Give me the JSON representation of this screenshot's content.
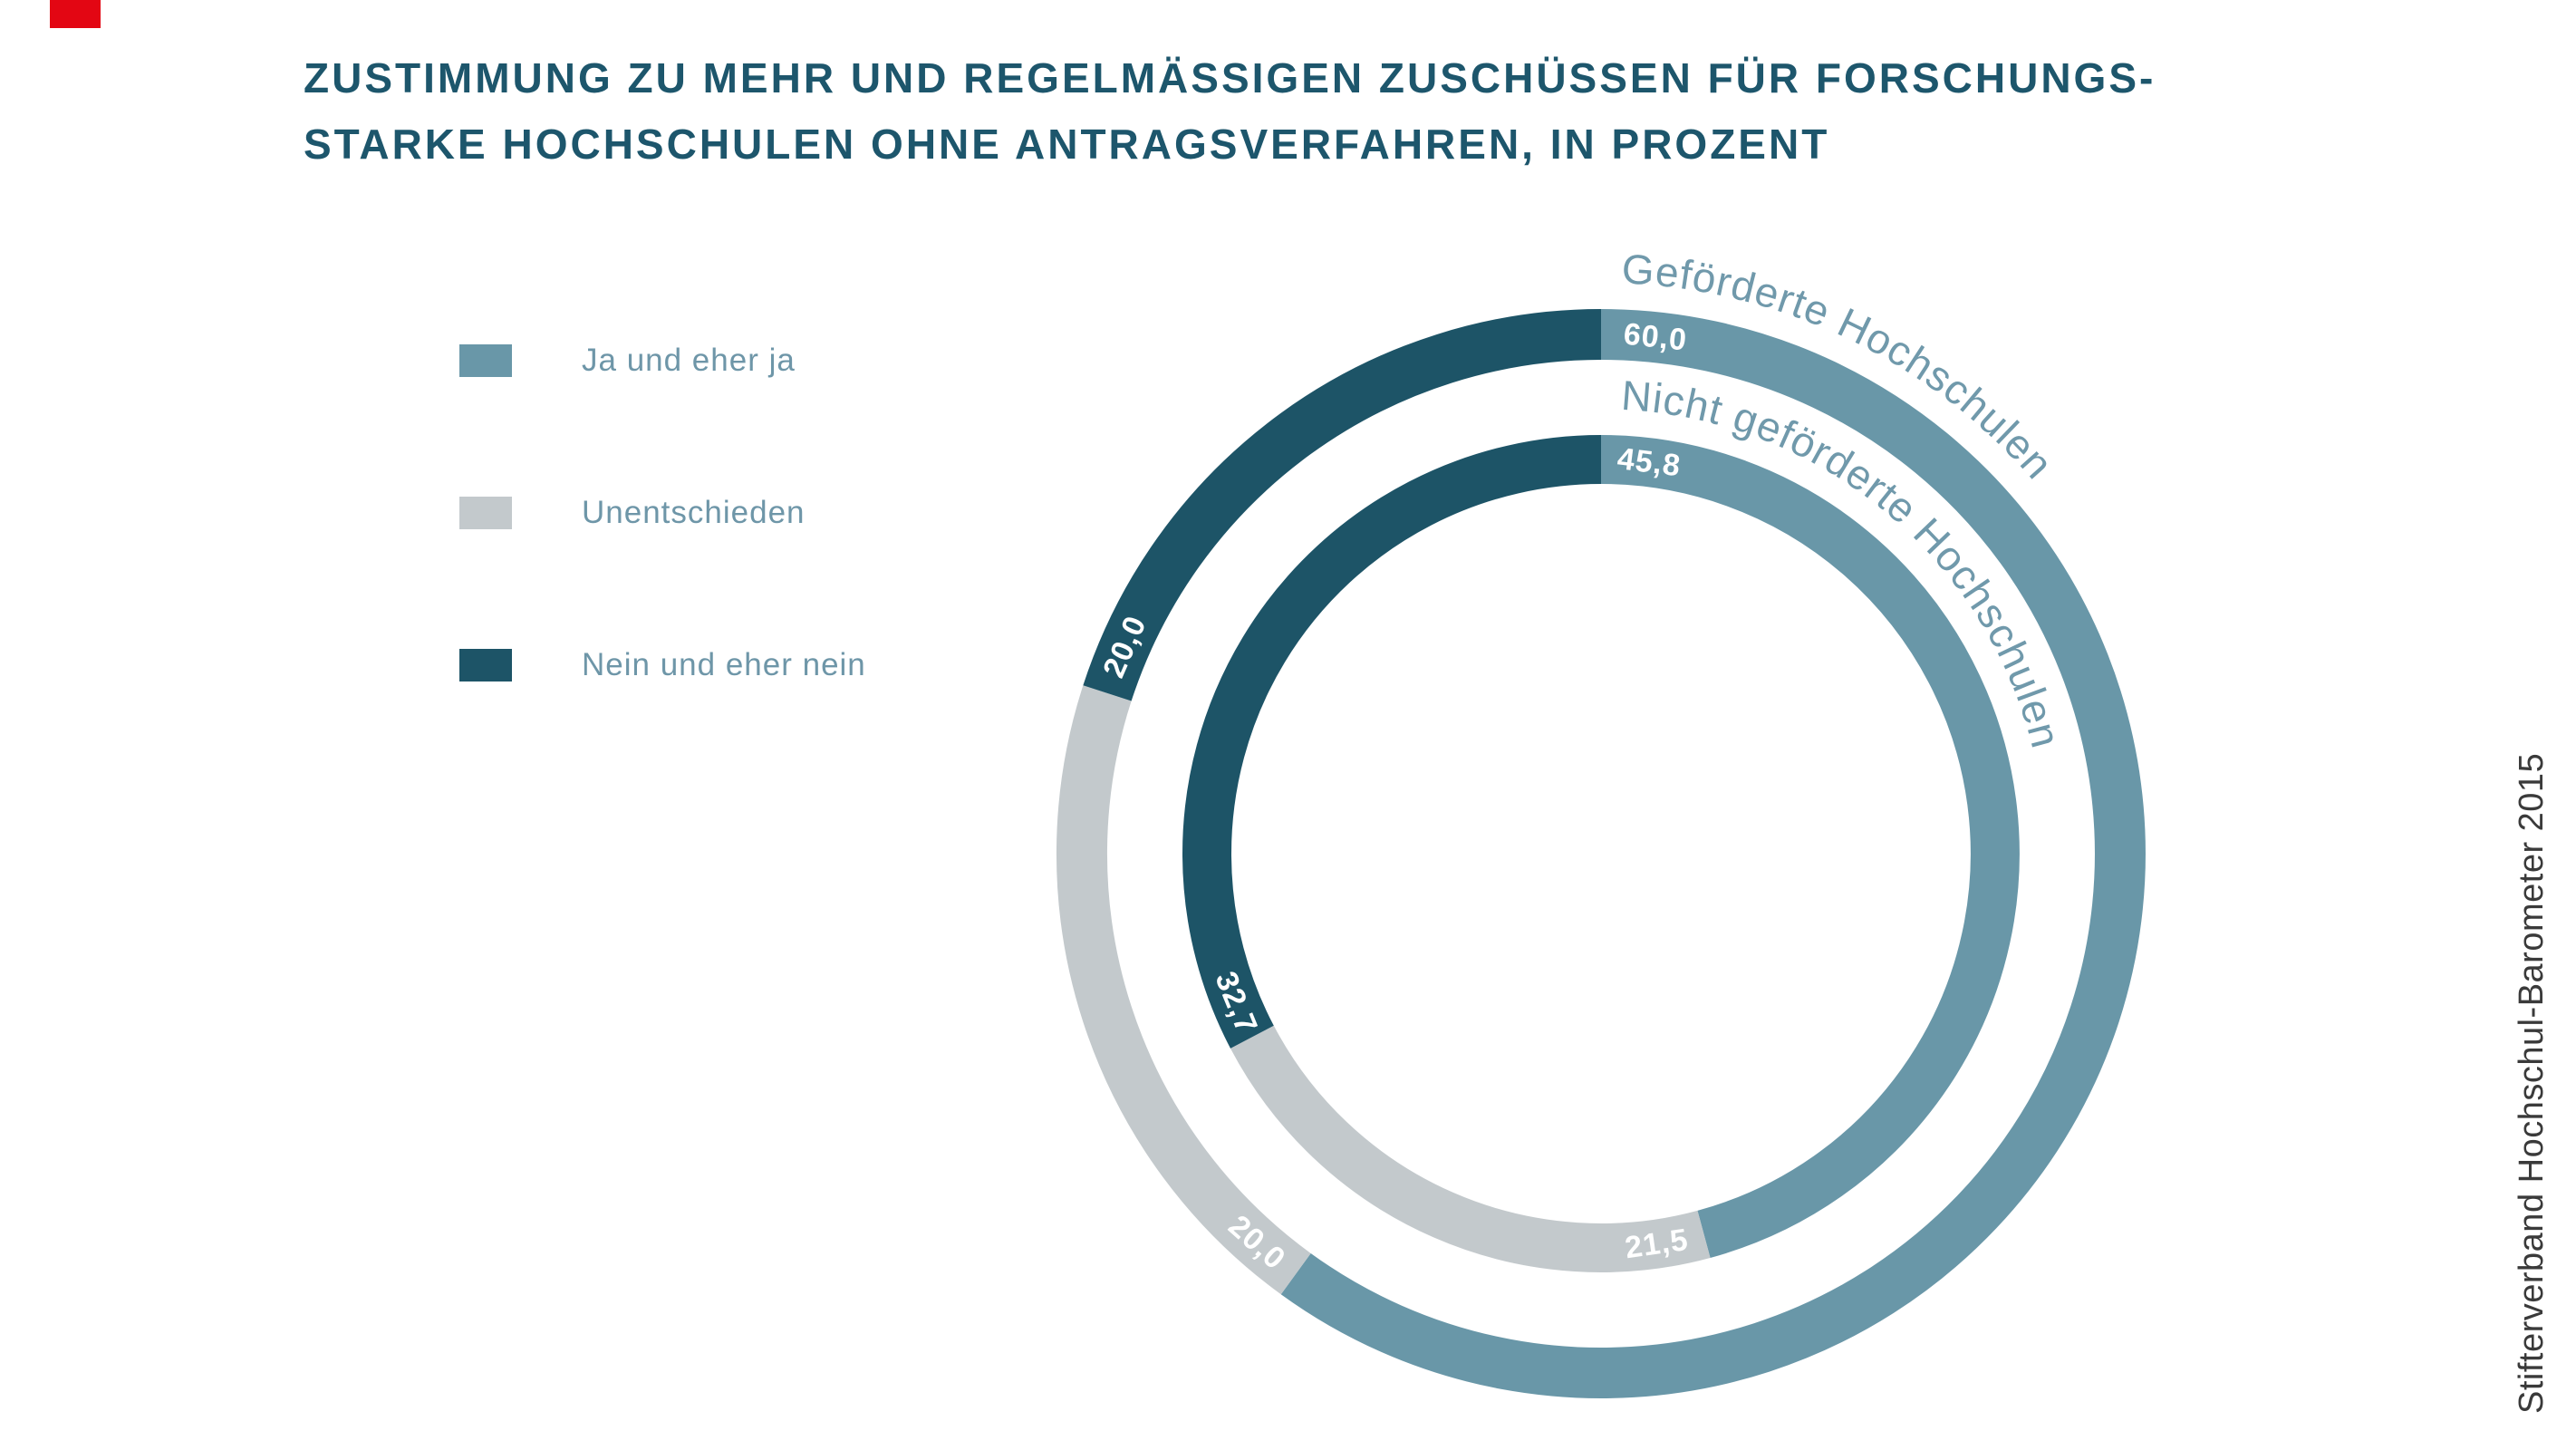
{
  "marker": {
    "color": "#e30613"
  },
  "header": {
    "title_line1": "ZUSTIMMUNG ZU MEHR UND REGELMÄSSIGEN ZUSCHÜSSEN FÜR FORSCHUNGS-",
    "title_line2": "STARKE HOCHSCHULEN OHNE ANTRAGSVERFAHREN, IN PROZENT"
  },
  "legend": {
    "items": [
      {
        "label": "Ja und eher ja",
        "color": "#6997a8"
      },
      {
        "label": "Unentschieden",
        "color": "#c3c9cc"
      },
      {
        "label": "Nein und eher nein",
        "color": "#1d5467"
      }
    ]
  },
  "chart_data": {
    "type": "pie",
    "subtype": "double-donut",
    "title": "Zustimmung zu mehr und regelmässigen Zuschüssen für forschungsstarke Hochschulen ohne Antragsverfahren, in Prozent",
    "unit": "percent",
    "start_angle_deg": 0,
    "direction": "clockwise",
    "categories": [
      "Ja und eher ja",
      "Unentschieden",
      "Nein und eher nein"
    ],
    "colors": [
      "#6997a8",
      "#c3c9cc",
      "#1d5467"
    ],
    "series": [
      {
        "name": "Geförderte Hochschulen",
        "ring": "outer",
        "values": [
          60.0,
          20.0,
          20.0
        ],
        "labels": [
          "60,0",
          "20,0",
          "20,0"
        ]
      },
      {
        "name": "Nicht geförderte Hochschulen",
        "ring": "inner",
        "values": [
          45.8,
          21.5,
          32.7
        ],
        "labels": [
          "45,8",
          "21,5",
          "32,7"
        ]
      }
    ],
    "legend_position": "left",
    "value_labels_position": "segment-start"
  },
  "source": {
    "text": "Stifterverband Hochschul-Barometer 2015"
  }
}
